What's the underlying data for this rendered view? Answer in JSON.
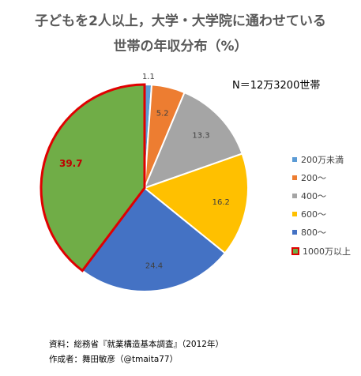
{
  "title_line1": "子どもを2人以上，大学・大学院に通わせている",
  "title_line2": "世帯の年収分布（%）",
  "note": "N＝12万3200世帯",
  "source_line1": "資料：総務省『就業構造基本調査』（2012年）",
  "source_line2": "作成者：舞田敏彦（@tmaita77）",
  "chart_data": {
    "type": "pie",
    "categories": [
      "200万未満",
      "200～",
      "400～",
      "600～",
      "800～",
      "1000万以上"
    ],
    "values": [
      1.1,
      5.2,
      13.3,
      16.2,
      24.4,
      39.7
    ],
    "colors": [
      "#5b9bd5",
      "#ed7d31",
      "#a5a5a5",
      "#ffc000",
      "#4472c4",
      "#70ad47"
    ],
    "highlight": "1000万以上",
    "highlight_border_color": "#e00000",
    "start": "12 o'clock",
    "direction": "clockwise",
    "legend_position": "right",
    "label_colors": [
      "#404040",
      "#404040",
      "#404040",
      "#404040",
      "#404040",
      "#c00000"
    ]
  }
}
